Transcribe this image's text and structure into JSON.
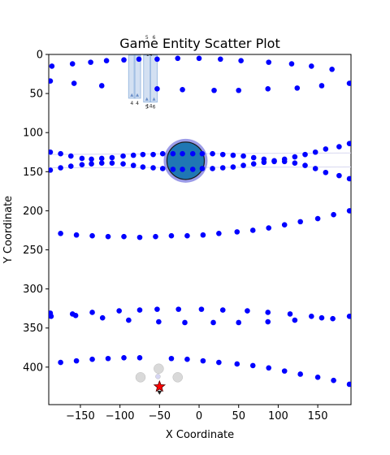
{
  "chart_data": {
    "type": "scatter",
    "title": "Game Entity Scatter Plot",
    "xlabel": "X Coordinate",
    "ylabel": "Y Coordinate",
    "xlim": [
      -190,
      192
    ],
    "ylim": [
      0,
      448
    ],
    "y_inverted": true,
    "grid": false,
    "legend": "none",
    "x_ticks": [
      -150,
      -100,
      -50,
      0,
      50,
      100,
      150
    ],
    "y_ticks": [
      0,
      50,
      100,
      150,
      200,
      250,
      300,
      350,
      400
    ],
    "colors": {
      "entity": "#0000ff",
      "big_entity": "#1f77b4",
      "big_entity_ring": "#4b4bd6",
      "player": "#ff0000",
      "ghost": "#cccccc",
      "panel": "#aec7e8"
    },
    "entities": {
      "row_top": {
        "x": [
          -186,
          -160,
          -137,
          -117,
          -95,
          -76,
          -53,
          -27,
          0,
          27,
          53,
          88,
          117,
          142,
          168
        ],
        "y": [
          15,
          12,
          10,
          8,
          7,
          6,
          6,
          5,
          5,
          6,
          8,
          10,
          12,
          15,
          19
        ]
      },
      "row_mid_top": {
        "x": [
          -188,
          -158,
          -123,
          -53,
          -21,
          19,
          50,
          87,
          124,
          155,
          190
        ],
        "y": [
          34,
          37,
          40,
          44,
          45,
          46,
          46,
          44,
          43,
          40,
          37
        ]
      },
      "row_upper": {
        "x": [
          -188,
          -175,
          -162,
          -148,
          -136,
          -123,
          -110,
          -96,
          -83,
          -71,
          -58,
          -46,
          -33,
          -21,
          -8,
          4,
          17,
          30,
          43,
          56,
          69,
          82,
          95,
          108,
          121,
          134,
          147,
          160,
          177,
          190
        ],
        "y": [
          125,
          127,
          130,
          133,
          134,
          133,
          132,
          130,
          129,
          128,
          128,
          127,
          127,
          127,
          127,
          127,
          127,
          128,
          129,
          130,
          132,
          134,
          136,
          134,
          131,
          128,
          125,
          121,
          118,
          114
        ]
      },
      "row_lower": {
        "x": [
          -188,
          -175,
          -162,
          -148,
          -136,
          -123,
          -110,
          -96,
          -83,
          -71,
          -58,
          -46,
          -33,
          -21,
          -8,
          4,
          17,
          30,
          43,
          56,
          69,
          82,
          95,
          108,
          121,
          134,
          147,
          160,
          177,
          190
        ],
        "y": [
          148,
          145,
          143,
          141,
          140,
          139,
          139,
          140,
          142,
          144,
          145,
          146,
          147,
          147,
          147,
          146,
          146,
          145,
          144,
          142,
          140,
          138,
          137,
          137,
          139,
          142,
          146,
          151,
          155,
          159
        ]
      },
      "row_230": {
        "x": [
          -175,
          -155,
          -135,
          -115,
          -95,
          -75,
          -55,
          -35,
          -15,
          5,
          25,
          48,
          68,
          88,
          108,
          128,
          150,
          170,
          190
        ],
        "y": [
          229,
          231,
          232,
          233,
          233,
          234,
          233,
          232,
          232,
          231,
          229,
          227,
          225,
          222,
          218,
          214,
          210,
          205,
          200
        ]
      },
      "row_330": {
        "x": [
          -188,
          -187,
          -160,
          -156,
          -135,
          -122,
          -101,
          -89,
          -75,
          -53,
          -51,
          -26,
          -18,
          3,
          18,
          30,
          50,
          61,
          87,
          87,
          115,
          121,
          142,
          155,
          169,
          190
        ],
        "y": [
          331,
          335,
          332,
          334,
          330,
          337,
          328,
          340,
          327,
          326,
          342,
          326,
          343,
          326,
          343,
          327,
          343,
          328,
          330,
          342,
          332,
          340,
          335,
          337,
          338,
          335
        ]
      },
      "row_bottom": {
        "x": [
          -175,
          -155,
          -135,
          -115,
          -95,
          -75,
          -35,
          -15,
          5,
          25,
          48,
          68,
          88,
          108,
          128,
          150,
          170,
          190
        ],
        "y": [
          394,
          392,
          390,
          389,
          388,
          388,
          389,
          390,
          392,
          394,
          396,
          398,
          401,
          405,
          409,
          413,
          417,
          422
        ]
      }
    },
    "big_entity": {
      "x": -17,
      "y": 136
    },
    "player": {
      "x": -50,
      "y": 425
    },
    "ghosts": [
      {
        "x": -74,
        "y": 413
      },
      {
        "x": -51,
        "y": 402
      },
      {
        "x": -27,
        "y": 413
      },
      {
        "x": -52,
        "y": 412
      }
    ],
    "panels": [
      {
        "x": -85,
        "y": 55,
        "label_top": "",
        "label_bottom": "4"
      },
      {
        "x": -78,
        "y": 55,
        "label_top": "",
        "label_bottom": "4"
      },
      {
        "x": -66,
        "y": 60,
        "label_top": "5",
        "label_bottom": "5"
      },
      {
        "x": -57,
        "y": 60,
        "label_top": "6",
        "label_bottom": "6"
      }
    ],
    "panel_extra_labels": [
      {
        "x": -63,
        "y": 0,
        "text": "14"
      },
      {
        "x": -63,
        "y": 68,
        "text": "14"
      }
    ]
  }
}
